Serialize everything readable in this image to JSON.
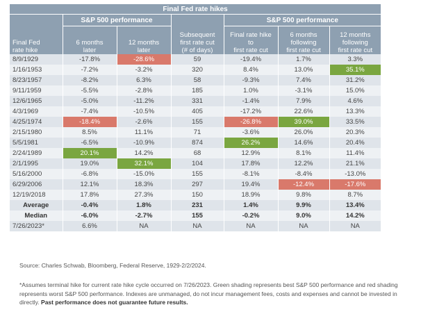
{
  "table": {
    "title": "Final Fed rate hikes",
    "group1": "S&P 500 performance",
    "group2": "S&P 500 performance",
    "columns": [
      [
        "Final Fed",
        "rate hike"
      ],
      [
        "6 months",
        "later"
      ],
      [
        "12 months",
        "later"
      ],
      [
        "Subsequent",
        "first rate cut",
        "(# of days)"
      ],
      [
        "Final rate hike",
        "to",
        "first rate cut"
      ],
      [
        "6 months",
        "following",
        "first rate cut"
      ],
      [
        "12 months",
        "following",
        "first rate cut"
      ]
    ],
    "rows": [
      {
        "cells": [
          "8/9/1929",
          "-17.8%",
          "-28.6%",
          "59",
          "-19.4%",
          "1.7%",
          "3.3%"
        ],
        "best": [],
        "worst": [
          2
        ]
      },
      {
        "cells": [
          "1/16/1953",
          "-7.2%",
          "-3.2%",
          "320",
          "8.4%",
          "13.0%",
          "35.1%"
        ],
        "best": [
          6
        ],
        "worst": []
      },
      {
        "cells": [
          "8/23/1957",
          "-8.2%",
          "6.3%",
          "58",
          "-9.3%",
          "7.4%",
          "31.2%"
        ],
        "best": [],
        "worst": []
      },
      {
        "cells": [
          "9/11/1959",
          "-5.5%",
          "-2.8%",
          "185",
          "1.0%",
          "-3.1%",
          "15.0%"
        ],
        "best": [],
        "worst": []
      },
      {
        "cells": [
          "12/6/1965",
          "-5.0%",
          "-11.2%",
          "331",
          "-1.4%",
          "7.9%",
          "4.6%"
        ],
        "best": [],
        "worst": []
      },
      {
        "cells": [
          "4/3/1969",
          "-7.4%",
          "-10.5%",
          "405",
          "-17.2%",
          "22.6%",
          "13.3%"
        ],
        "best": [],
        "worst": []
      },
      {
        "cells": [
          "4/25/1974",
          "-18.4%",
          "-2.6%",
          "155",
          "-26.8%",
          "39.0%",
          "33.5%"
        ],
        "best": [
          5
        ],
        "worst": [
          1,
          4
        ]
      },
      {
        "cells": [
          "2/15/1980",
          "8.5%",
          "11.1%",
          "71",
          "-3.6%",
          "26.0%",
          "20.3%"
        ],
        "best": [],
        "worst": []
      },
      {
        "cells": [
          "5/5/1981",
          "-6.5%",
          "-10.9%",
          "874",
          "26.2%",
          "14.6%",
          "20.4%"
        ],
        "best": [
          4
        ],
        "worst": []
      },
      {
        "cells": [
          "2/24/1989",
          "20.1%",
          "14.2%",
          "68",
          "12.9%",
          "8.1%",
          "11.4%"
        ],
        "best": [
          1
        ],
        "worst": []
      },
      {
        "cells": [
          "2/1/1995",
          "19.0%",
          "32.1%",
          "104",
          "17.8%",
          "12.2%",
          "21.1%"
        ],
        "best": [
          2
        ],
        "worst": []
      },
      {
        "cells": [
          "5/16/2000",
          "-6.8%",
          "-15.0%",
          "155",
          "-8.1%",
          "-8.4%",
          "-13.0%"
        ],
        "best": [],
        "worst": []
      },
      {
        "cells": [
          "6/29/2006",
          "12.1%",
          "18.3%",
          "297",
          "19.4%",
          "-12.4%",
          "-17.6%"
        ],
        "best": [],
        "worst": [
          5,
          6
        ]
      },
      {
        "cells": [
          "12/19/2018",
          "17.8%",
          "27.3%",
          "150",
          "18.9%",
          "9.8%",
          "8.7%"
        ],
        "best": [],
        "worst": []
      }
    ],
    "summary": [
      {
        "cells": [
          "Average",
          "-0.4%",
          "1.8%",
          "231",
          "1.4%",
          "9.9%",
          "13.4%"
        ]
      },
      {
        "cells": [
          "Median",
          "-6.0%",
          "-2.7%",
          "155",
          "-0.2%",
          "9.0%",
          "14.2%"
        ]
      }
    ],
    "last_row": {
      "cells": [
        "7/26/2023*",
        "6.6%",
        "NA",
        "NA",
        "NA",
        "NA",
        "NA"
      ]
    }
  },
  "colors": {
    "header": "#8ea0b1",
    "best": "#7aa640",
    "worst": "#d9796b",
    "row_odd": "#dfe4ea",
    "row_even": "#eef1f4"
  },
  "source": "Source: Charles Schwab, Bloomberg, Federal Reserve, 1929-2/2/2024.",
  "note": "*Assumes terminal hike for current rate hike cycle occurred on 7/26/2023. Green shading represents best S&P 500 performance and red shading represents worst S&P 500 performance. Indexes are unmanaged, do not incur management fees, costs and expenses and cannot be invested in directly.",
  "note_bold": "Past performance does not guarantee future results."
}
